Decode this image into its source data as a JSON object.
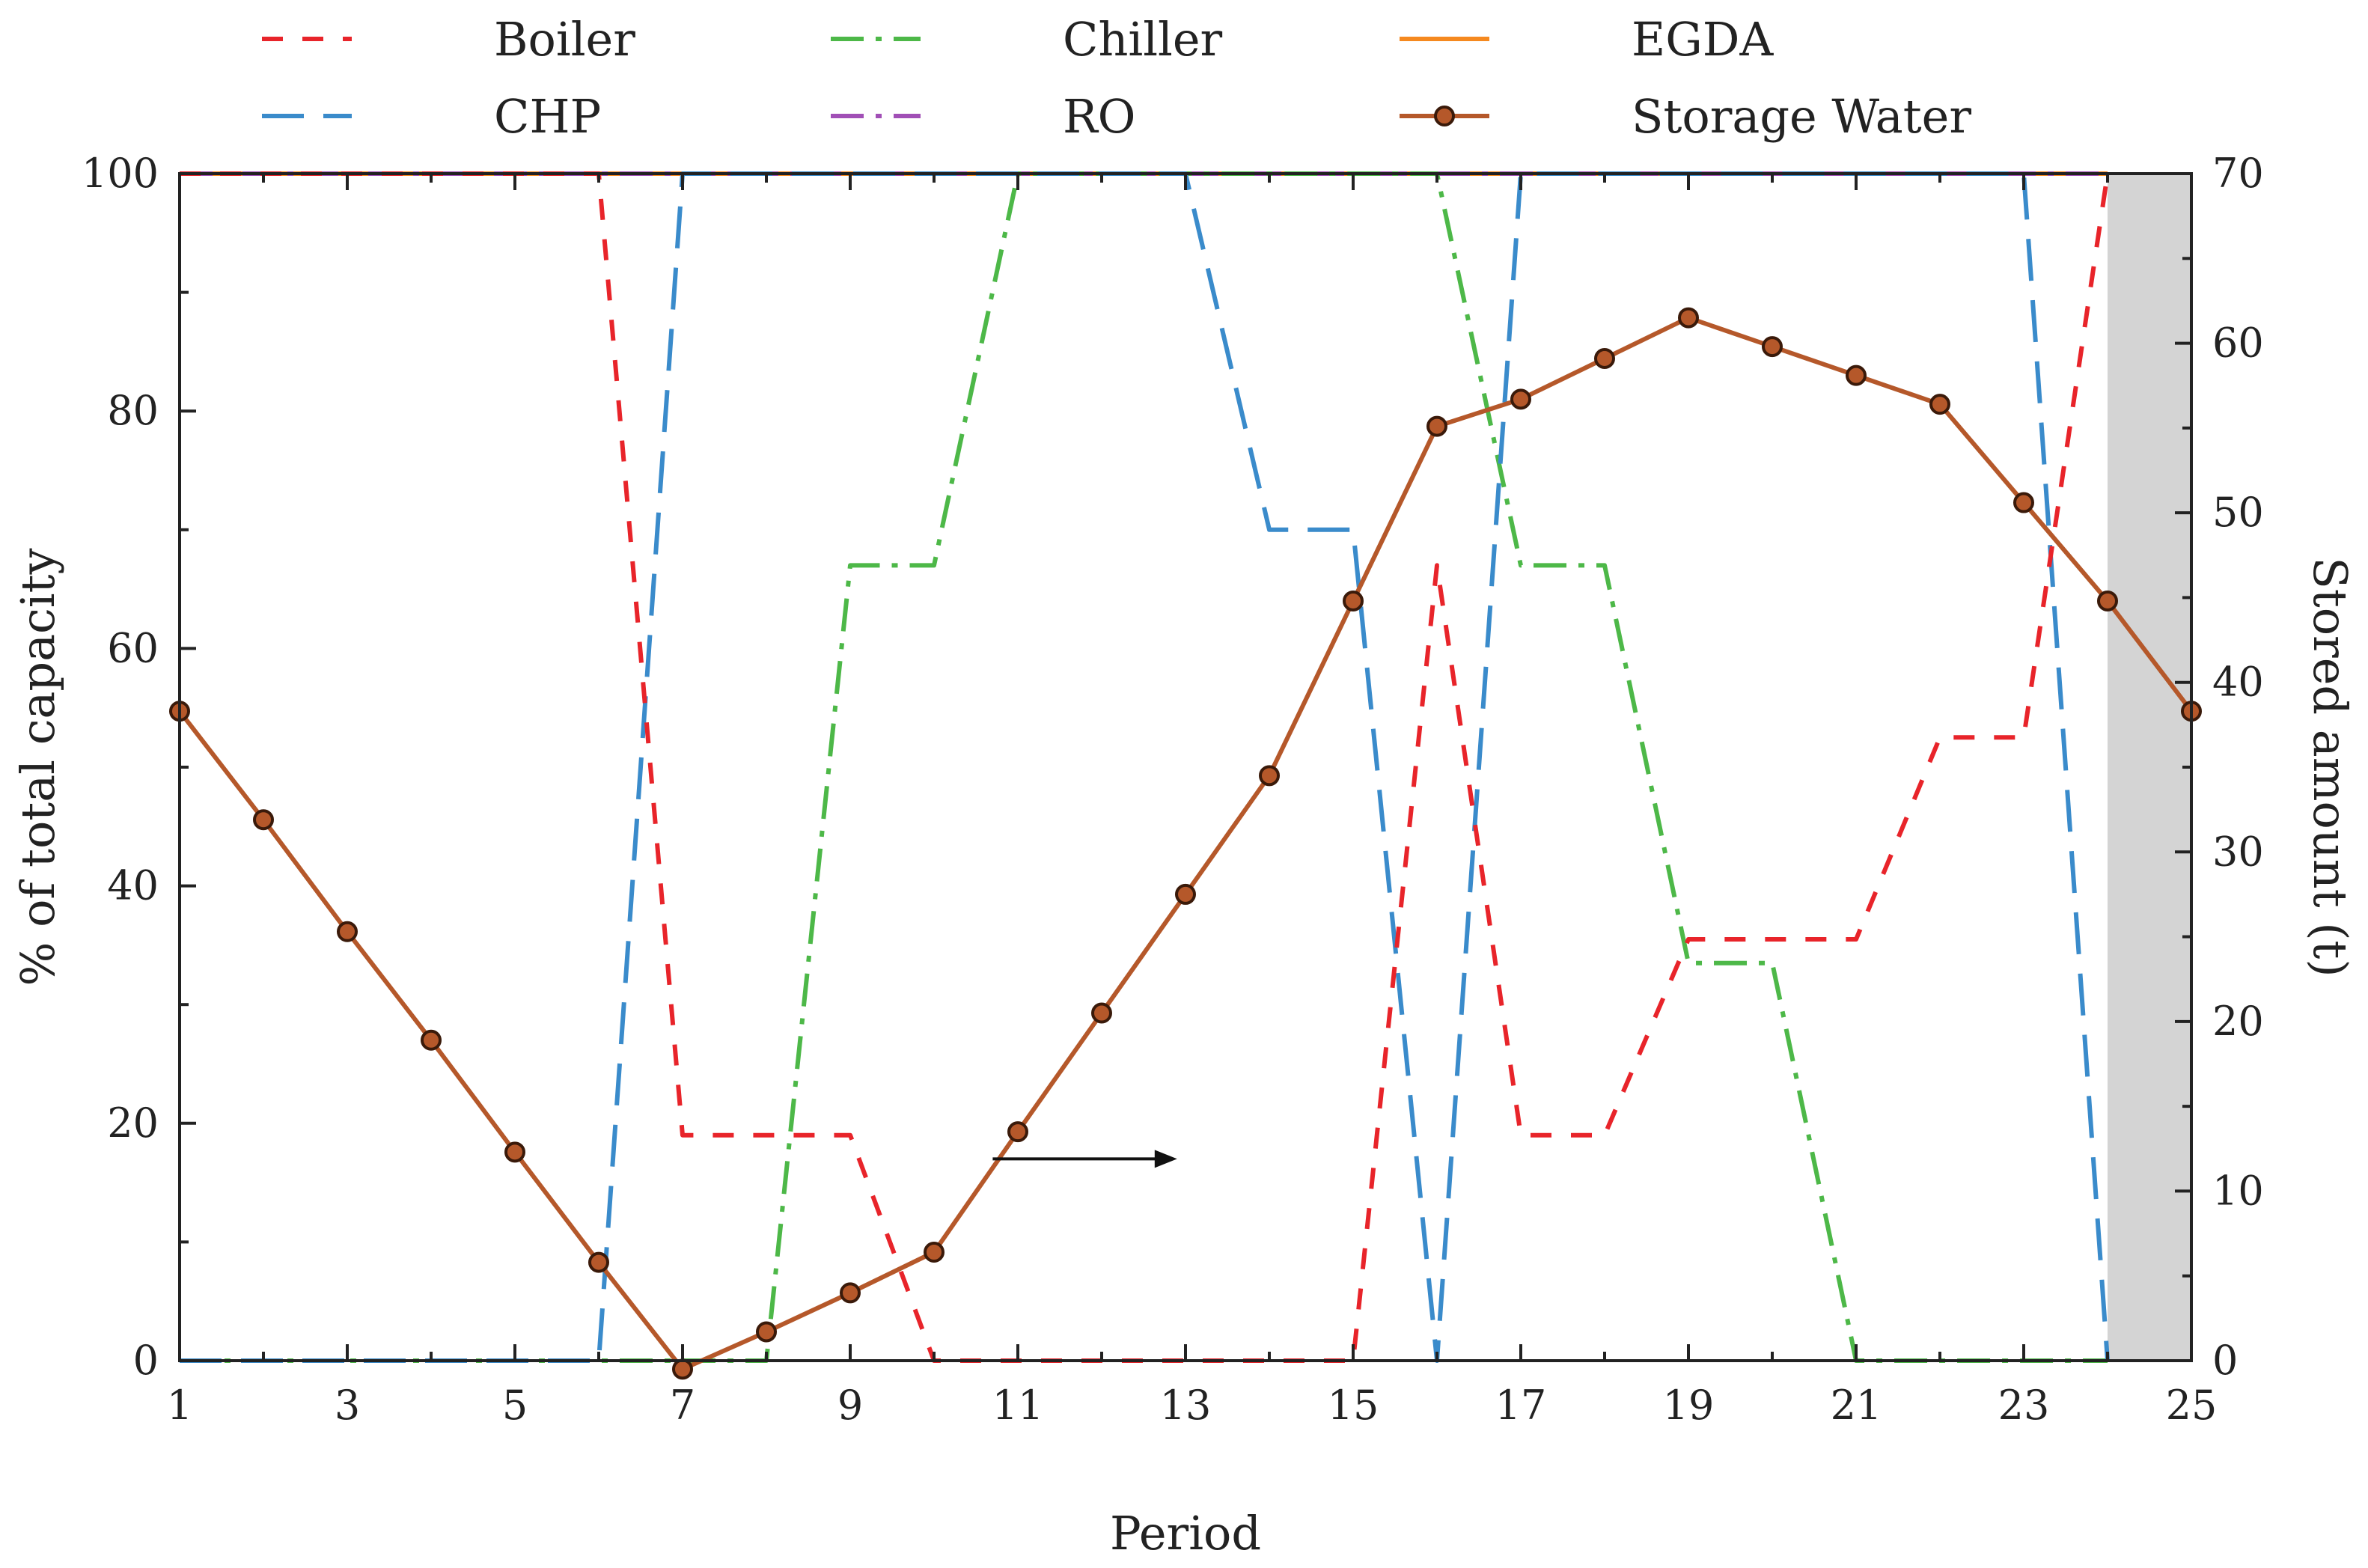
{
  "chart_data": {
    "type": "line",
    "xlabel": "Period",
    "ylabel_left": "% of total capacity",
    "ylabel_right": "Stored amount (t)",
    "xlim": [
      1,
      25
    ],
    "ylim_left": [
      0,
      100
    ],
    "ylim_right": [
      0,
      70
    ],
    "x_ticks": [
      1,
      3,
      5,
      7,
      9,
      11,
      13,
      15,
      17,
      19,
      21,
      23,
      25
    ],
    "y_ticks_left": [
      0,
      20,
      40,
      60,
      80,
      100
    ],
    "y_ticks_right": [
      0,
      10,
      20,
      30,
      40,
      50,
      60,
      70
    ],
    "shaded_region": [
      24,
      25
    ],
    "annotation": {
      "type": "arrow",
      "x_from": 10.7,
      "x_to": 12.9,
      "y": 17,
      "meaning": "Storage Water uses right axis"
    },
    "series": [
      {
        "name": "Boiler",
        "axis": "left",
        "color": "#e8242a",
        "dash": "short",
        "x": [
          1,
          2,
          3,
          4,
          5,
          6,
          7,
          8,
          9,
          10,
          11,
          12,
          13,
          14,
          15,
          16,
          17,
          18,
          19,
          20,
          21,
          22,
          23,
          24
        ],
        "values": [
          100,
          100,
          100,
          100,
          100,
          100,
          19,
          19,
          19,
          0,
          0,
          0,
          0,
          0,
          0,
          67,
          19,
          19,
          35.5,
          35.5,
          35.5,
          52.5,
          52.5,
          100
        ]
      },
      {
        "name": "CHP",
        "axis": "left",
        "color": "#3a8bcb",
        "dash": "long",
        "x": [
          1,
          2,
          3,
          4,
          5,
          6,
          7,
          8,
          9,
          10,
          11,
          12,
          13,
          14,
          15,
          16,
          17,
          18,
          19,
          20,
          21,
          22,
          23,
          24
        ],
        "values": [
          0,
          0,
          0,
          0,
          0,
          0,
          100,
          100,
          100,
          100,
          100,
          100,
          100,
          70,
          70,
          0,
          100,
          100,
          100,
          100,
          100,
          100,
          100,
          0
        ]
      },
      {
        "name": "Chiller",
        "axis": "left",
        "color": "#4db848",
        "dash": "dashdot",
        "x": [
          1,
          2,
          3,
          4,
          5,
          6,
          7,
          8,
          9,
          10,
          11,
          12,
          13,
          14,
          15,
          16,
          17,
          18,
          19,
          20,
          21,
          22,
          23,
          24
        ],
        "values": [
          0,
          0,
          0,
          0,
          0,
          0,
          0,
          0,
          67,
          67,
          100,
          100,
          100,
          100,
          100,
          100,
          67,
          67,
          33.5,
          33.5,
          0,
          0,
          0,
          0
        ]
      },
      {
        "name": "EGDA",
        "axis": "left",
        "color": "#f5891f",
        "dash": "solid",
        "x": [
          1,
          24
        ],
        "values": [
          100,
          100
        ]
      },
      {
        "name": "RO",
        "axis": "left",
        "color": "#a14fb6",
        "dash": "dashdot",
        "x": [
          1,
          24
        ],
        "values": [
          100,
          100
        ]
      },
      {
        "name": "Storage Water",
        "axis": "right",
        "color": "#b5582a",
        "marker": "circle",
        "dash": "solid",
        "x": [
          1,
          2,
          3,
          4,
          5,
          6,
          7,
          8,
          9,
          10,
          11,
          12,
          13,
          14,
          15,
          16,
          17,
          18,
          19,
          20,
          21,
          22,
          23,
          24,
          25
        ],
        "values": [
          38.3,
          31.9,
          25.3,
          18.9,
          12.3,
          5.8,
          -0.5,
          1.7,
          4.0,
          6.4,
          13.5,
          20.5,
          27.5,
          34.5,
          44.8,
          55.1,
          56.7,
          59.1,
          61.5,
          59.8,
          58.1,
          56.4,
          50.6,
          44.8,
          38.3
        ]
      }
    ]
  }
}
